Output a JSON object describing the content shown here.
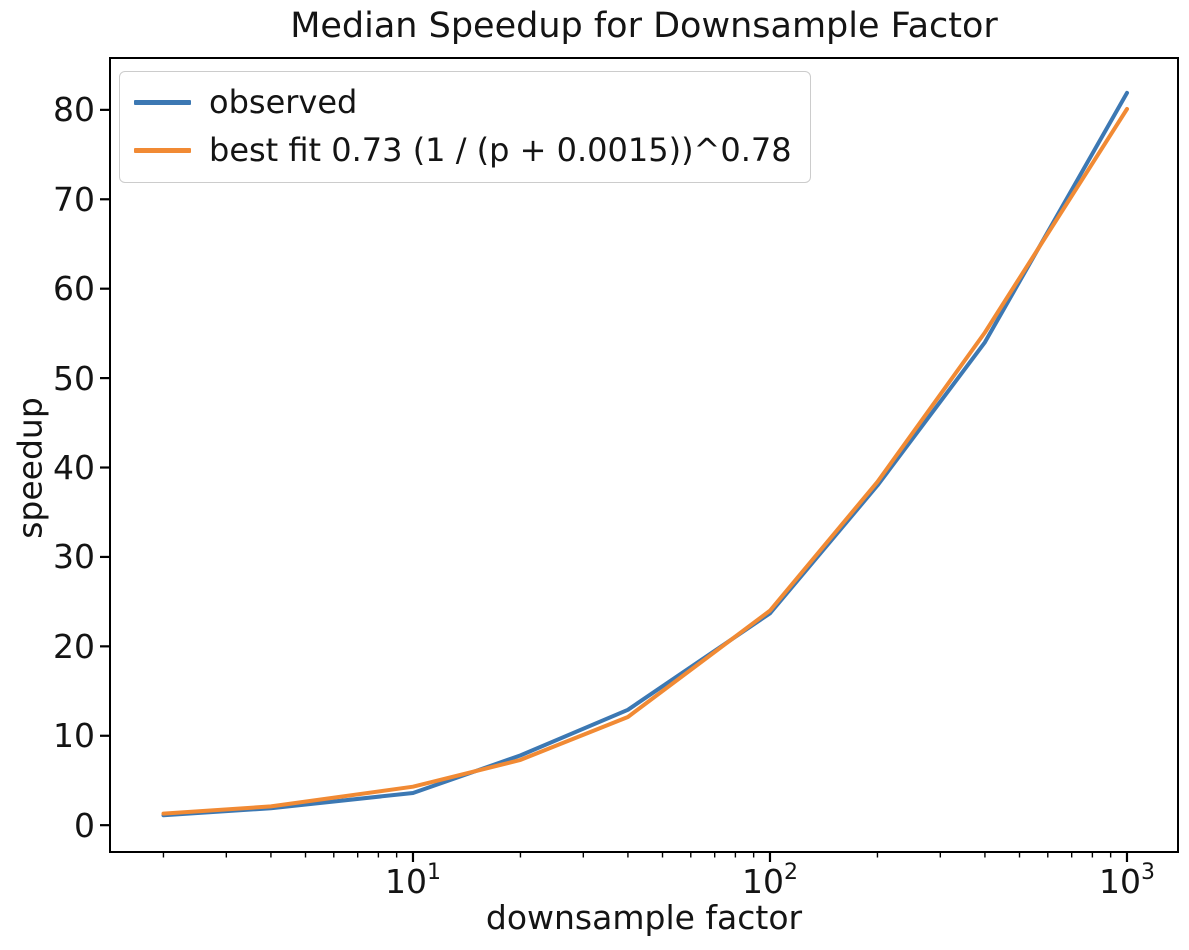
{
  "chart_data": {
    "type": "line",
    "title": "Median Speedup for Downsample Factor",
    "xlabel": "downsample factor",
    "ylabel": "speedup",
    "x_scale": "log10",
    "grid": false,
    "legend_position": "upper left",
    "x": [
      2,
      4,
      10,
      20,
      40,
      100,
      200,
      400,
      1000
    ],
    "series": [
      {
        "name": "observed",
        "color": "#3c78b3",
        "values": [
          1.1,
          1.9,
          3.6,
          7.8,
          12.9,
          23.7,
          38.0,
          54.0,
          81.9
        ]
      },
      {
        "name": "best fit 0.73 (1 / (p + 0.0015))^0.78",
        "color": "#f18a34",
        "values": [
          1.3,
          2.1,
          4.3,
          7.3,
          12.1,
          24.0,
          38.4,
          55.1,
          80.1
        ]
      }
    ],
    "xlim_log": [
      0.1513,
      3.1429
    ],
    "ylim": [
      -3.0,
      85.8
    ],
    "y_ticks": [
      0,
      10,
      20,
      30,
      40,
      50,
      60,
      70,
      80
    ],
    "x_tick_exponents": [
      1,
      2,
      3
    ],
    "axis_color": "#000000"
  }
}
